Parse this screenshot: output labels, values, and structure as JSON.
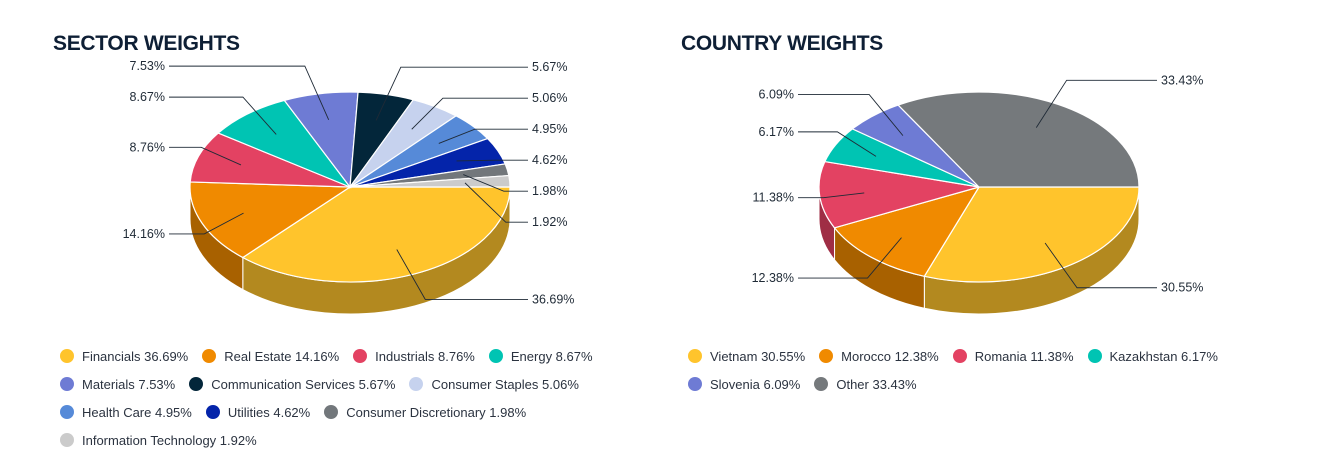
{
  "chart_data": [
    {
      "type": "pie",
      "title": "SECTOR WEIGHTS",
      "categories": [
        "Financials",
        "Real Estate",
        "Industrials",
        "Energy",
        "Materials",
        "Communication Services",
        "Consumer Staples",
        "Health Care",
        "Utilities",
        "Consumer Discretionary",
        "Information Technology"
      ],
      "values": [
        36.69,
        14.16,
        8.76,
        8.67,
        7.53,
        5.67,
        5.06,
        4.95,
        4.62,
        1.98,
        1.92
      ],
      "data_labels": [
        "36.69%",
        "14.16%",
        "8.76%",
        "8.67%",
        "7.53%",
        "5.67%",
        "5.06%",
        "4.95%",
        "4.62%",
        "1.98%",
        "1.92%"
      ],
      "legend_labels": [
        "Financials 36.69%",
        "Real Estate 14.16%",
        "Industrials 8.76%",
        "Energy 8.67%",
        "Materials 7.53%",
        "Communication Services 5.67%",
        "Consumer Staples 5.06%",
        "Health Care 4.95%",
        "Utilities 4.62%",
        "Consumer Discretionary 1.98%",
        "Information Technology 1.92%"
      ],
      "colors": [
        "#FFC42C",
        "#F08A00",
        "#E34262",
        "#00C4B3",
        "#6E7BD4",
        "#03263A",
        "#C6D2EE",
        "#568AD8",
        "#0424AA",
        "#72777B",
        "#CBCBCB"
      ],
      "legend_position": "bottom"
    },
    {
      "type": "pie",
      "title": "COUNTRY WEIGHTS",
      "categories": [
        "Vietnam",
        "Morocco",
        "Romania",
        "Kazakhstan",
        "Slovenia",
        "Other"
      ],
      "values": [
        30.55,
        12.38,
        11.38,
        6.17,
        6.09,
        33.43
      ],
      "data_labels": [
        "30.55%",
        "12.38%",
        "11.38%",
        "6.17%",
        "6.09%",
        "33.43%"
      ],
      "legend_labels": [
        "Vietnam 30.55%",
        "Morocco 12.38%",
        "Romania 11.38%",
        "Kazakhstan 6.17%",
        "Slovenia 6.09%",
        "Other 33.43%"
      ],
      "colors": [
        "#FFC42C",
        "#F08A00",
        "#E34262",
        "#00C4B3",
        "#6E7BD4",
        "#75797C"
      ],
      "legend_position": "bottom"
    }
  ]
}
